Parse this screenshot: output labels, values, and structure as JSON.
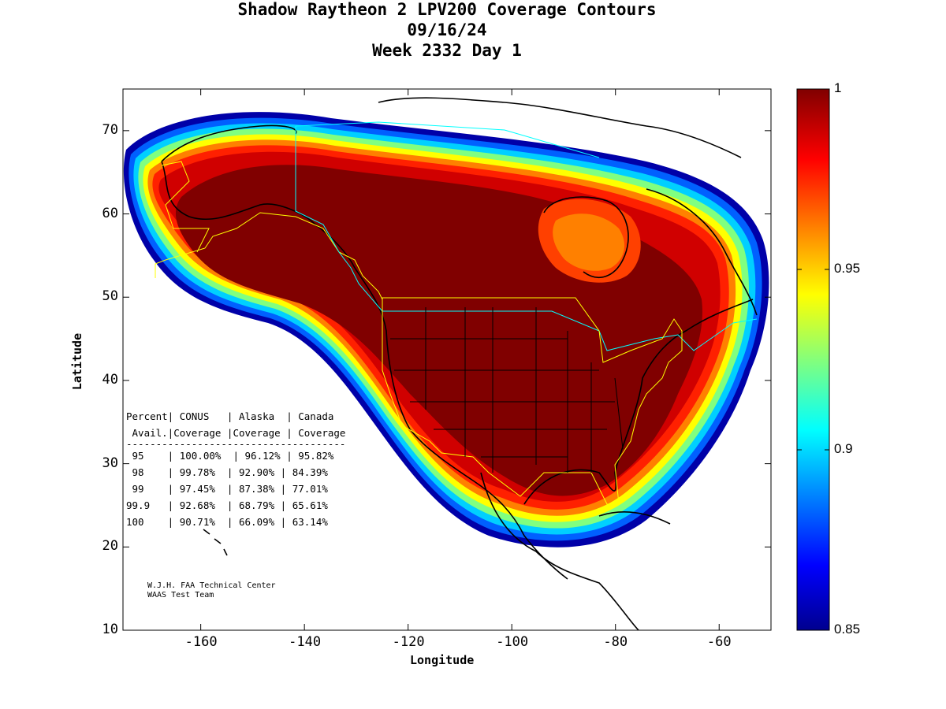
{
  "title": {
    "line1": "Shadow Raytheon 2 LPV200 Coverage Contours",
    "line2": "09/16/24",
    "line3": "Week 2332 Day 1"
  },
  "axes": {
    "xlabel": "Longitude",
    "ylabel": "Latitude",
    "x_range": [
      -175,
      -50
    ],
    "y_range": [
      10,
      75
    ],
    "x_ticks": [
      -160,
      -140,
      -120,
      -100,
      -80,
      -60
    ],
    "y_ticks": [
      10,
      20,
      30,
      40,
      50,
      60,
      70
    ]
  },
  "colorbar": {
    "range": [
      0.85,
      1.0
    ],
    "ticks": [
      {
        "value": 1.0,
        "label": "1"
      },
      {
        "value": 0.95,
        "label": "0.95"
      },
      {
        "value": 0.9,
        "label": "0.9"
      },
      {
        "value": 0.85,
        "label": "0.85"
      }
    ],
    "colormap": "jet"
  },
  "coverage_table": {
    "header1": "Percent| CONUS   | Alaska  | Canada",
    "header2": " Avail.|Coverage |Coverage | Coverage",
    "separator": "-------------------------------------",
    "rows": [
      " 95    | 100.00%  | 96.12% | 95.82%",
      " 98    | 99.78%  | 92.90% | 84.39%",
      " 99    | 97.45%  | 87.38% | 77.01%",
      "99.9   | 92.68%  | 68.79% | 65.61%",
      "100    | 90.71%  | 66.09% | 63.14%"
    ]
  },
  "credits": {
    "line1": "W.J.H. FAA Technical Center",
    "line2": "WAAS Test Team"
  },
  "colors": {
    "coverage_max": "#800000",
    "region_boundary": "#ffff00",
    "canada_boundary": "#00ffff",
    "coastline": "#000000"
  }
}
